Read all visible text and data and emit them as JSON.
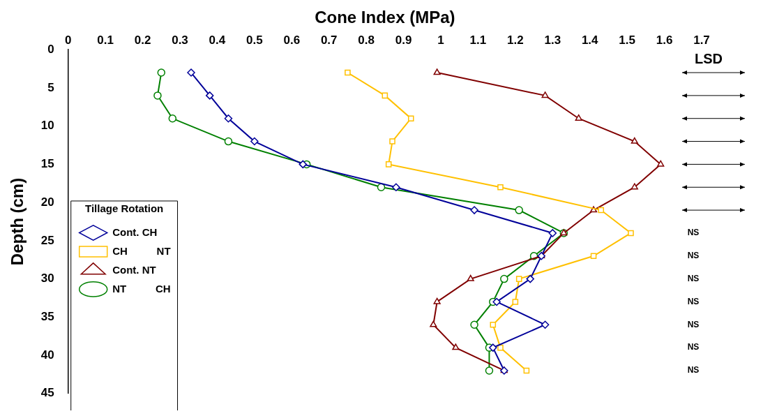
{
  "chart_data": {
    "type": "line",
    "xlabel": "Cone Index (MPa)",
    "ylabel": "Depth (cm)",
    "legend_title": "Tillage Rotation",
    "legend": "left",
    "grid": false,
    "xlim": [
      0,
      1.7
    ],
    "xticks": [
      0,
      0.1,
      0.2,
      0.3,
      0.4,
      0.5,
      0.6,
      0.7,
      0.8,
      0.9,
      1,
      1.1,
      1.2,
      1.3,
      1.4,
      1.5,
      1.6,
      1.7
    ],
    "ylim": [
      45,
      0
    ],
    "yticks": [
      0,
      5,
      10,
      15,
      20,
      25,
      30,
      35,
      40,
      45
    ],
    "series": [
      {
        "name": "Cont. CH",
        "color": "#000099",
        "marker": "diamond",
        "x": [
          0.33,
          0.38,
          0.43,
          0.5,
          0.63,
          0.88,
          1.09,
          1.3,
          1.27,
          1.24,
          1.15,
          1.28,
          1.14,
          1.17
        ],
        "values": [
          3,
          6,
          9,
          12,
          15,
          18,
          21,
          24,
          27,
          30,
          33,
          36,
          39,
          42
        ]
      },
      {
        "name": "CH          NT",
        "color": "#ffc000",
        "marker": "square",
        "x": [
          0.75,
          0.85,
          0.92,
          0.87,
          0.86,
          1.16,
          1.43,
          1.51,
          1.41,
          1.21,
          1.2,
          1.14,
          1.16,
          1.23
        ],
        "values": [
          3,
          6,
          9,
          12,
          15,
          18,
          21,
          24,
          27,
          30,
          33,
          36,
          39,
          42
        ]
      },
      {
        "name": "Cont. NT",
        "color": "#800000",
        "marker": "triangle",
        "x": [
          0.99,
          1.28,
          1.37,
          1.52,
          1.59,
          1.52,
          1.41,
          1.33,
          1.27,
          1.08,
          0.99,
          0.98,
          1.04,
          1.17
        ],
        "values": [
          3,
          6,
          9,
          12,
          15,
          18,
          21,
          24,
          27,
          30,
          33,
          36,
          39,
          42
        ]
      },
      {
        "name": "NT          CH",
        "color": "#008000",
        "marker": "circle",
        "x": [
          0.25,
          0.24,
          0.28,
          0.43,
          0.64,
          0.84,
          1.21,
          1.33,
          1.25,
          1.17,
          1.14,
          1.09,
          1.13,
          1.13
        ],
        "values": [
          3,
          6,
          9,
          12,
          15,
          18,
          21,
          24,
          27,
          30,
          33,
          36,
          39,
          42
        ]
      }
    ],
    "annotations": [
      "LSD",
      "NS",
      "NS",
      "NS",
      "NS",
      "NS",
      "NS",
      "NS"
    ]
  }
}
